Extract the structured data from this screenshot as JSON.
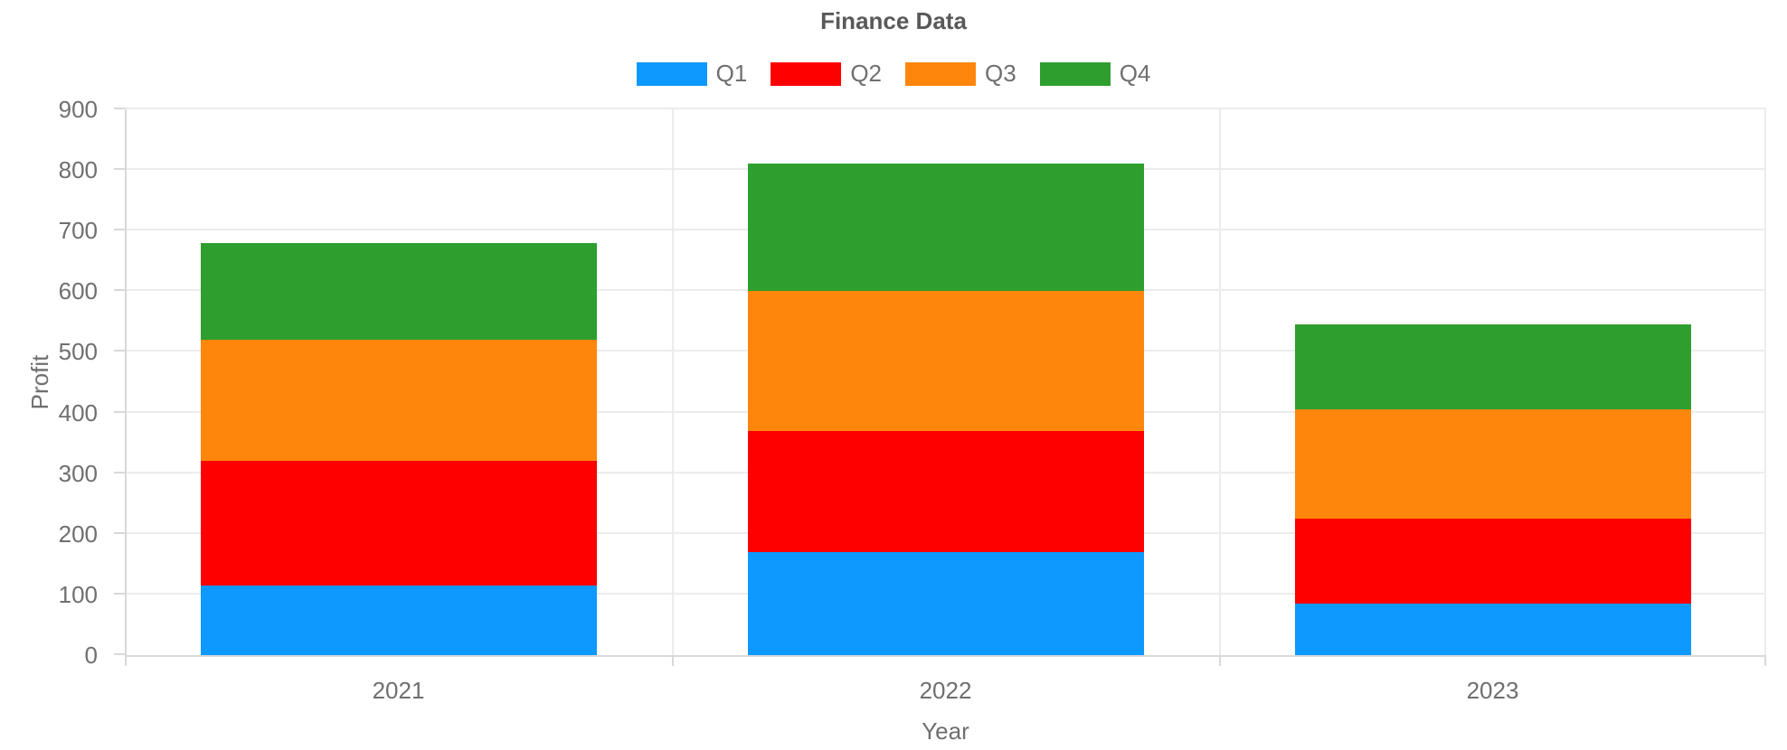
{
  "title": "Finance Data",
  "chart_data": {
    "type": "bar",
    "stacked": true,
    "title": "Finance Data",
    "xlabel": "Year",
    "ylabel": "Profit",
    "categories": [
      "2021",
      "2022",
      "2023"
    ],
    "series": [
      {
        "name": "Q1",
        "color": "#0d99ff",
        "values": [
          115,
          170,
          85
        ]
      },
      {
        "name": "Q2",
        "color": "#ff0000",
        "values": [
          205,
          200,
          140
        ]
      },
      {
        "name": "Q3",
        "color": "#ff860d",
        "values": [
          200,
          230,
          180
        ]
      },
      {
        "name": "Q4",
        "color": "#2e9f2e",
        "values": [
          160,
          210,
          140
        ]
      }
    ],
    "stack_totals": [
      680,
      810,
      545
    ],
    "ylim": [
      0,
      900
    ],
    "yticks": [
      0,
      100,
      200,
      300,
      400,
      500,
      600,
      700,
      800,
      900
    ],
    "grid": true,
    "legend_position": "top",
    "style": {
      "grid_color": "#ececec",
      "axis_color": "#d9d9d9",
      "text_color": "#6f6f6f",
      "title_color": "#595959",
      "background": "#ffffff"
    }
  }
}
